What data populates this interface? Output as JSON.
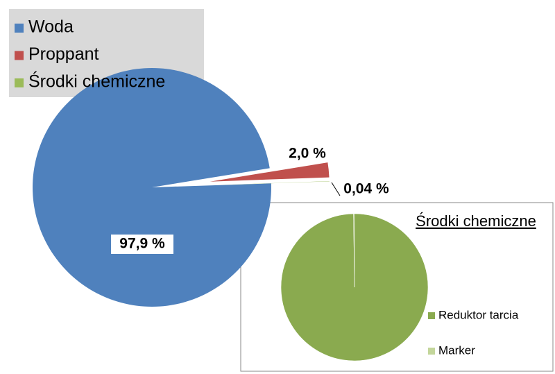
{
  "chart_data": [
    {
      "type": "pie",
      "categories": [
        "Woda",
        "Proppant",
        "Środki chemiczne"
      ],
      "values": [
        97.9,
        2.0,
        0.04
      ],
      "value_labels": [
        "97,9 %",
        "2,0 %",
        "0,04 %"
      ],
      "colors": [
        "#4f81bd",
        "#c0504d",
        "#9bbb59"
      ]
    },
    {
      "type": "pie",
      "title": "Środki chemiczne",
      "categories": [
        "Reduktor tarcia",
        "Marker"
      ],
      "values": [
        99.9,
        0.1
      ],
      "colors": [
        "#8aaa4f",
        "#c3d69b"
      ]
    }
  ]
}
